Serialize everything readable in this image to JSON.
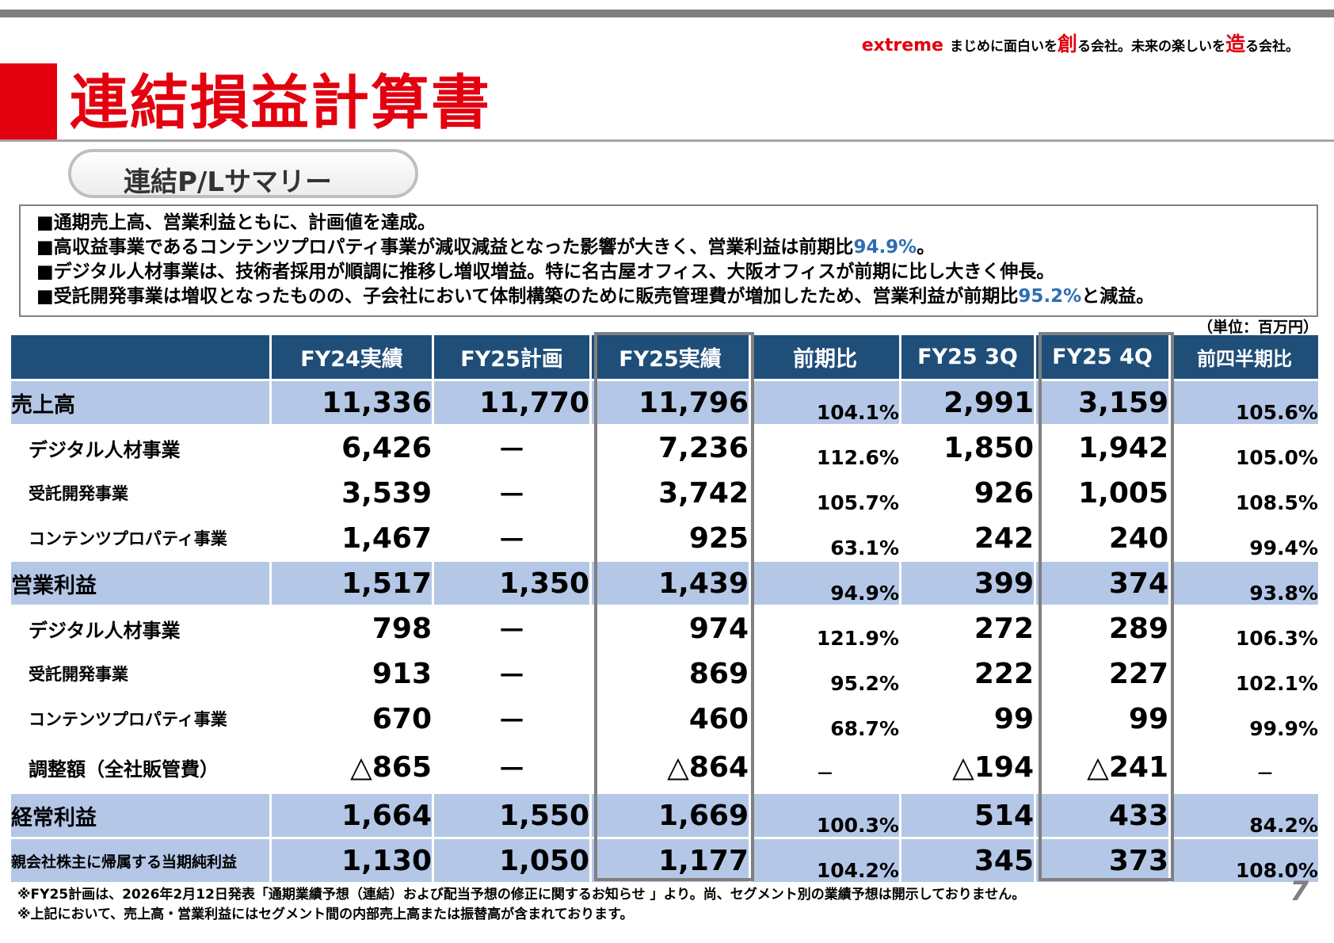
{
  "header": {
    "brand": "extreme",
    "tagline_1": "まじめに面白いを",
    "tagline_kanji_1": "創",
    "tagline_2": "る会社。未来の楽しいを",
    "tagline_kanji_2": "造",
    "tagline_3": "る会社。"
  },
  "title": "連結損益計算書",
  "subtitle": "連結P/Lサマリー",
  "summary": [
    {
      "text": "■通期売上高、営業利益ともに、計画値を達成。",
      "highlight": "",
      "suffix": ""
    },
    {
      "text": "■高収益事業であるコンテンツプロパティ事業が減収減益となった影響が大きく、営業利益は前期比",
      "highlight": "94.9%",
      "suffix": "。"
    },
    {
      "text": "■デジタル人材事業は、技術者採用が順調に推移し増収増益。特に名古屋オフィス、大阪オフィスが前期に比し大きく伸長。",
      "highlight": "",
      "suffix": ""
    },
    {
      "text": "■受託開発事業は増収となったものの、子会社において体制構築のために販売管理費が増加したため、営業利益が前期比",
      "highlight": "95.2%",
      "suffix": "と減益。"
    }
  ],
  "unit": "（単位：百万円）",
  "table": {
    "headers": [
      "",
      "FY24実績",
      "FY25計画",
      "FY25実績",
      "前期比",
      "FY25 3Q",
      "FY25 4Q",
      "前四半期比"
    ],
    "rows": [
      {
        "label": "売上高",
        "cells": [
          "11,336",
          "11,770",
          "11,796",
          "104.1%",
          "2,991",
          "3,159",
          "105.6%"
        ]
      },
      {
        "label": "デジタル人材事業",
        "cells": [
          "6,426",
          "－",
          "7,236",
          "112.6%",
          "1,850",
          "1,942",
          "105.0%"
        ]
      },
      {
        "label": "受託開発事業",
        "cells": [
          "3,539",
          "－",
          "3,742",
          "105.7%",
          "926",
          "1,005",
          "108.5%"
        ]
      },
      {
        "label": "コンテンツプロパティ事業",
        "cells": [
          "1,467",
          "－",
          "925",
          "63.1%",
          "242",
          "240",
          "99.4%"
        ]
      },
      {
        "label": "営業利益",
        "cells": [
          "1,517",
          "1,350",
          "1,439",
          "94.9%",
          "399",
          "374",
          "93.8%"
        ]
      },
      {
        "label": "デジタル人材事業",
        "cells": [
          "798",
          "－",
          "974",
          "121.9%",
          "272",
          "289",
          "106.3%"
        ]
      },
      {
        "label": "受託開発事業",
        "cells": [
          "913",
          "－",
          "869",
          "95.2%",
          "222",
          "227",
          "102.1%"
        ]
      },
      {
        "label": "コンテンツプロパティ事業",
        "cells": [
          "670",
          "－",
          "460",
          "68.7%",
          "99",
          "99",
          "99.9%"
        ]
      },
      {
        "label": "調整額（全社販管費）",
        "cells": [
          "△865",
          "－",
          "△864",
          "－",
          "△194",
          "△241",
          "－"
        ]
      },
      {
        "label": "経常利益",
        "cells": [
          "1,664",
          "1,550",
          "1,669",
          "100.3%",
          "514",
          "433",
          "84.2%"
        ]
      },
      {
        "label": "親会社株主に帰属する当期純利益",
        "cells": [
          "1,130",
          "1,050",
          "1,177",
          "104.2%",
          "345",
          "373",
          "108.0%"
        ]
      }
    ]
  },
  "notes": [
    "※FY25計画は、2026年2月12日発表「通期業績予想（連結）および配当予想の修正に関するお知らせ 」より。尚、セグメント別の業績予想は開示しておりません。",
    "※上記において、売上高・営業利益にはセグメント間の内部売上高または振替高が含まれております。"
  ],
  "page_number": "7",
  "colors": {
    "accent_red": "#e3000f",
    "header_navy": "#1f4e79",
    "row_highlight": "#b4c7e7",
    "highlight_blue": "#2e6db4"
  }
}
